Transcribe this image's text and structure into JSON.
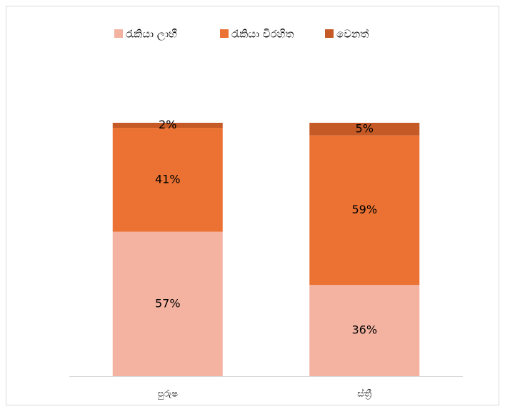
{
  "chart_data": {
    "type": "stacked_bar",
    "categories": [
      "පුරුෂ",
      "ස්ත්‍රී"
    ],
    "series": [
      {
        "name": "රැකියා ලාභී",
        "color": "#f4b3a1",
        "values": [
          57,
          36
        ],
        "value_labels": [
          "57%",
          "36%"
        ]
      },
      {
        "name": "රැකියා විරහිත",
        "color": "#eb7233",
        "values": [
          41,
          59
        ],
        "value_labels": [
          "41%",
          "59%"
        ]
      },
      {
        "name": "වෙනත්",
        "color": "#c55a26",
        "values": [
          2,
          5
        ],
        "value_labels": [
          "2%",
          "5%"
        ]
      }
    ],
    "legend": "top"
  }
}
